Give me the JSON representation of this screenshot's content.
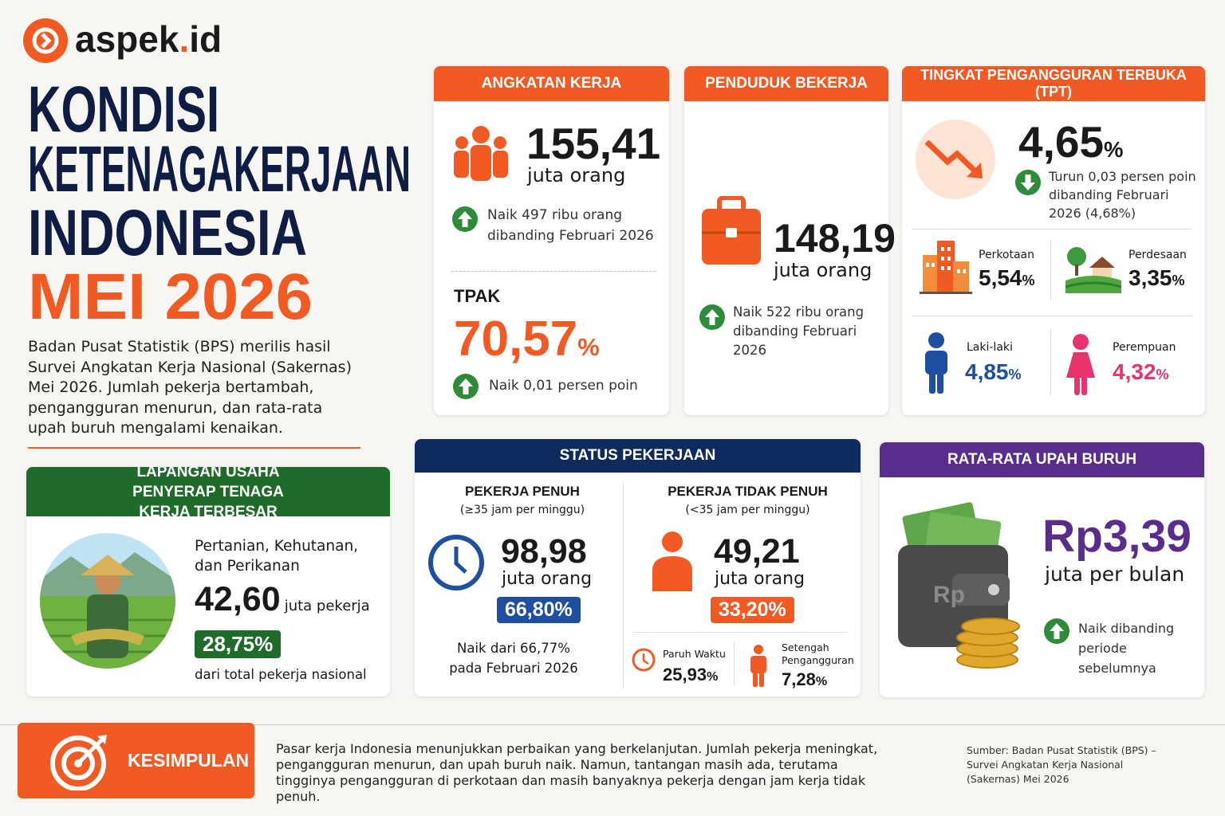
{
  "header": {
    "logo_name": "aspek",
    "logo_dot": ".",
    "logo_tld": "id",
    "title_lines": [
      "KONDISI",
      "KETENAGAKERJAAN",
      "INDONESIA"
    ],
    "title_highlight": "MEI 2026",
    "intro": "Badan Pusat Statistik (BPS) merilis hasil Survei Angkatan Kerja Nasional (Sakernas) Mei 2026. Jumlah pekerja bertambah, pengangguran menurun, dan rata-rata upah buruh mengalami kenaikan."
  },
  "angkatan_kerja": {
    "title": "ANGKATAN KERJA",
    "value": "155,41",
    "unit": "juta orang",
    "change": "Naik 497 ribu orang dibanding Februari 2026",
    "tpak_label": "TPAK",
    "tpak_value": "70,57",
    "tpak_unit": "%",
    "tpak_change": "Naik 0,01 persen poin"
  },
  "penduduk_bekerja": {
    "title": "PENDUDUK BEKERJA",
    "value": "148,19",
    "unit": "juta orang",
    "change": "Naik 522 ribu orang dibanding Februari 2026"
  },
  "tpt": {
    "title": "TINGKAT PENGANGGURAN TERBUKA (TPT)",
    "value": "4,65",
    "unit": "%",
    "change": "Turun 0,03 persen poin dibanding Februari 2026 (4,68%)",
    "breakdown": [
      {
        "label": "Perkotaan",
        "value": "5,54",
        "unit": "%"
      },
      {
        "label": "Perdesaan",
        "value": "3,35",
        "unit": "%"
      },
      {
        "label": "Laki-laki",
        "value": "4,85",
        "unit": "%"
      },
      {
        "label": "Perempuan",
        "value": "4,32",
        "unit": "%"
      }
    ]
  },
  "lapangan_usaha": {
    "title": "LAPANGAN USAHA PENYERAP TENAGA KERJA TERBESAR",
    "sector": "Pertanian, Kehutanan, dan Perikanan",
    "value": "42,60",
    "unit": "juta pekerja",
    "share": "28,75%",
    "note": "dari total pekerja nasional"
  },
  "status_pekerjaan": {
    "title": "STATUS PEKERJAAN",
    "penuh": {
      "label": "PEKERJA PENUH",
      "sub": "(≥35 jam per minggu)",
      "value": "98,98",
      "unit": "juta orang",
      "share": "66,80%",
      "note": "Naik dari 66,77% pada Februari 2026"
    },
    "tidak_penuh": {
      "label": "PEKERJA TIDAK PENUH",
      "sub": "(<35 jam per minggu)",
      "value": "49,21",
      "unit": "juta orang",
      "share": "33,20%",
      "parts": [
        {
          "label": "Paruh Waktu",
          "value": "25,93",
          "unit": "%"
        },
        {
          "label": "Setengah Pengangguran",
          "value": "7,28",
          "unit": "%"
        }
      ]
    }
  },
  "upah": {
    "title": "RATA-RATA UPAH BURUH",
    "value": "Rp3,39",
    "unit": "juta per bulan",
    "change": "Naik dibanding periode sebelumnya",
    "wallet_label": "Rp"
  },
  "kesimpulan": {
    "label": "KESIMPULAN",
    "text": "Pasar kerja Indonesia menunjukkan perbaikan yang berkelanjutan. Jumlah pekerja meningkat, pengangguran menurun, dan upah buruh naik. Namun, tantangan masih ada, terutama tingginya pengangguran di perkotaan dan masih banyaknya pekerja dengan jam kerja tidak penuh.",
    "source": "Sumber: Badan Pusat Statistik (BPS) – Survei Angkatan Kerja Nasional (Sakernas) Mei 2026"
  }
}
